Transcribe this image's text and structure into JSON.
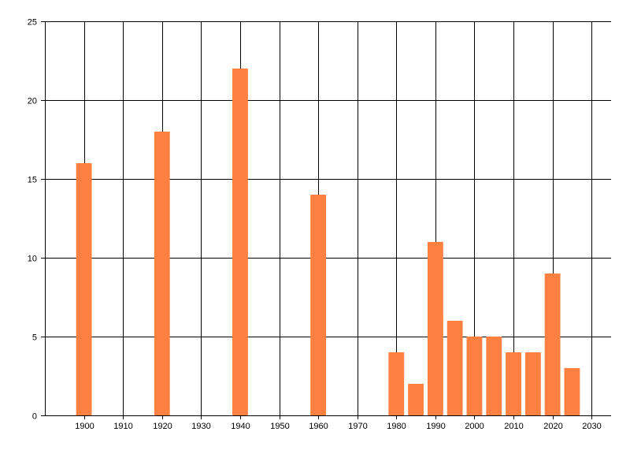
{
  "chart_data": {
    "type": "bar",
    "x": [
      1900,
      1920,
      1940,
      1960,
      1980,
      1985,
      1990,
      1995,
      2000,
      2005,
      2010,
      2015,
      2020,
      2025
    ],
    "values": [
      16,
      18,
      22,
      14,
      4,
      2,
      11,
      6,
      5,
      5,
      4,
      4,
      9,
      3
    ],
    "xlim": [
      1890,
      2035
    ],
    "ylim": [
      0,
      25
    ],
    "x_ticks": [
      "1900",
      "1910",
      "1920",
      "1930",
      "1940",
      "1950",
      "1960",
      "1970",
      "1980",
      "1990",
      "2000",
      "2010",
      "2020",
      "2030"
    ],
    "y_ticks": [
      "0",
      "5",
      "10",
      "15",
      "20",
      "25"
    ],
    "bar_width_years": 4,
    "grid": true,
    "title": "",
    "xlabel": "",
    "ylabel": "",
    "colors": {
      "bar": "#ff8040",
      "grid": "#000000"
    }
  }
}
